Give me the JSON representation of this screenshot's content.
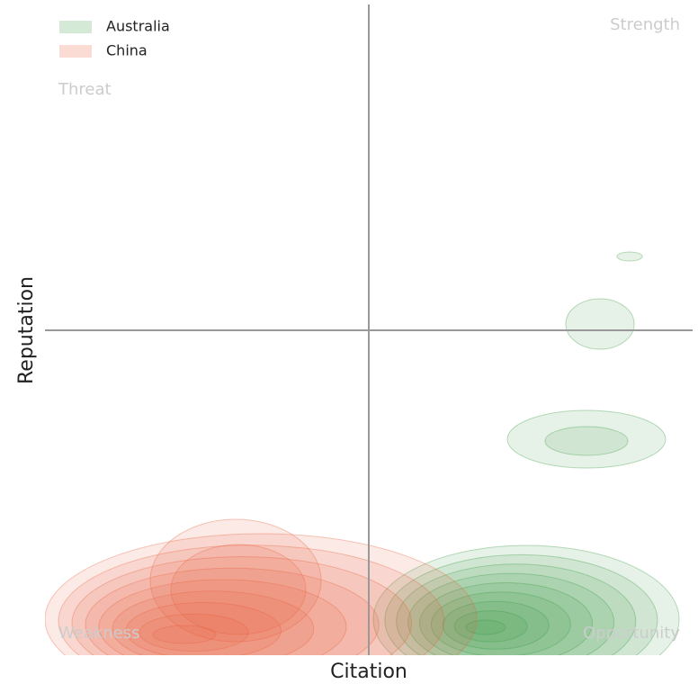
{
  "chart_data": {
    "type": "kde",
    "xlabel": "Citation",
    "ylabel": "Reputation",
    "series": [
      {
        "name": "Australia",
        "color": "#3a9a46"
      },
      {
        "name": "China",
        "color": "#e8603c"
      }
    ],
    "annotations": [
      "Threat",
      "Strength",
      "Weakness",
      "Opportunity"
    ],
    "legend": "upper left",
    "grid": false
  }
}
